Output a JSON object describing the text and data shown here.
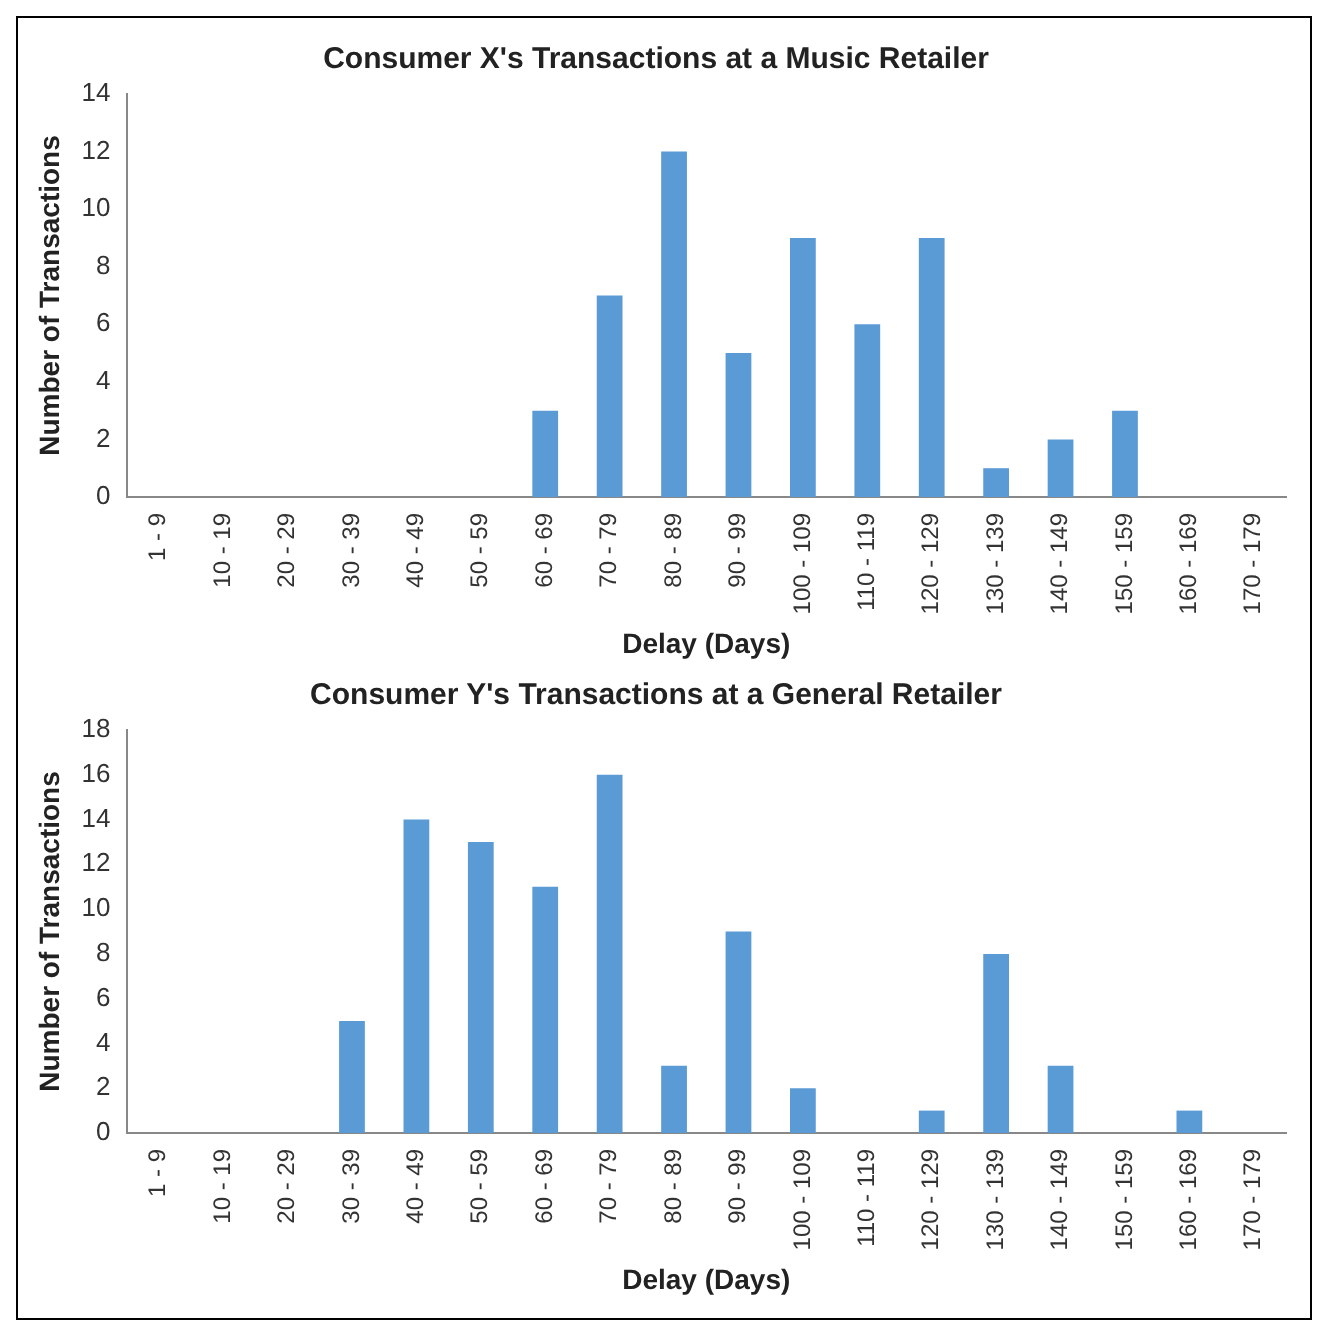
{
  "chart_data": [
    {
      "type": "bar",
      "title": "Consumer X's Transactions at a Music Retailer",
      "xlabel": "Delay (Days)",
      "ylabel": "Number of Transactions",
      "categories": [
        "1 - 9",
        "10 - 19",
        "20 - 29",
        "30 - 39",
        "40 - 49",
        "50 - 59",
        "60 - 69",
        "70 - 79",
        "80 - 89",
        "90 - 99",
        "100 - 109",
        "110 - 119",
        "120 - 129",
        "130 - 139",
        "140 - 149",
        "150 - 159",
        "160 - 169",
        "170 - 179"
      ],
      "values": [
        0,
        0,
        0,
        0,
        0,
        0,
        3,
        7,
        12,
        5,
        9,
        6,
        9,
        1,
        2,
        3,
        0,
        0
      ],
      "color": "#5b9bd5",
      "ylim": [
        0,
        14
      ],
      "yticks": [
        0,
        2,
        4,
        6,
        8,
        10,
        12,
        14
      ],
      "grid": false,
      "legend": false
    },
    {
      "type": "bar",
      "title": "Consumer Y's Transactions at a General Retailer",
      "xlabel": "Delay (Days)",
      "ylabel": "Number of Transactions",
      "categories": [
        "1 - 9",
        "10 - 19",
        "20 - 29",
        "30 - 39",
        "40 - 49",
        "50 - 59",
        "60 - 69",
        "70 - 79",
        "80 - 89",
        "90 - 99",
        "100 - 109",
        "110 - 119",
        "120 - 129",
        "130 - 139",
        "140 - 149",
        "150 - 159",
        "160 - 169",
        "170 - 179"
      ],
      "values": [
        0,
        0,
        0,
        5,
        14,
        13,
        11,
        16,
        3,
        9,
        2,
        0,
        1,
        8,
        3,
        0,
        1,
        0
      ],
      "color": "#5b9bd5",
      "ylim": [
        0,
        18
      ],
      "yticks": [
        0,
        2,
        4,
        6,
        8,
        10,
        12,
        14,
        16,
        18
      ],
      "grid": false,
      "legend": false
    }
  ]
}
